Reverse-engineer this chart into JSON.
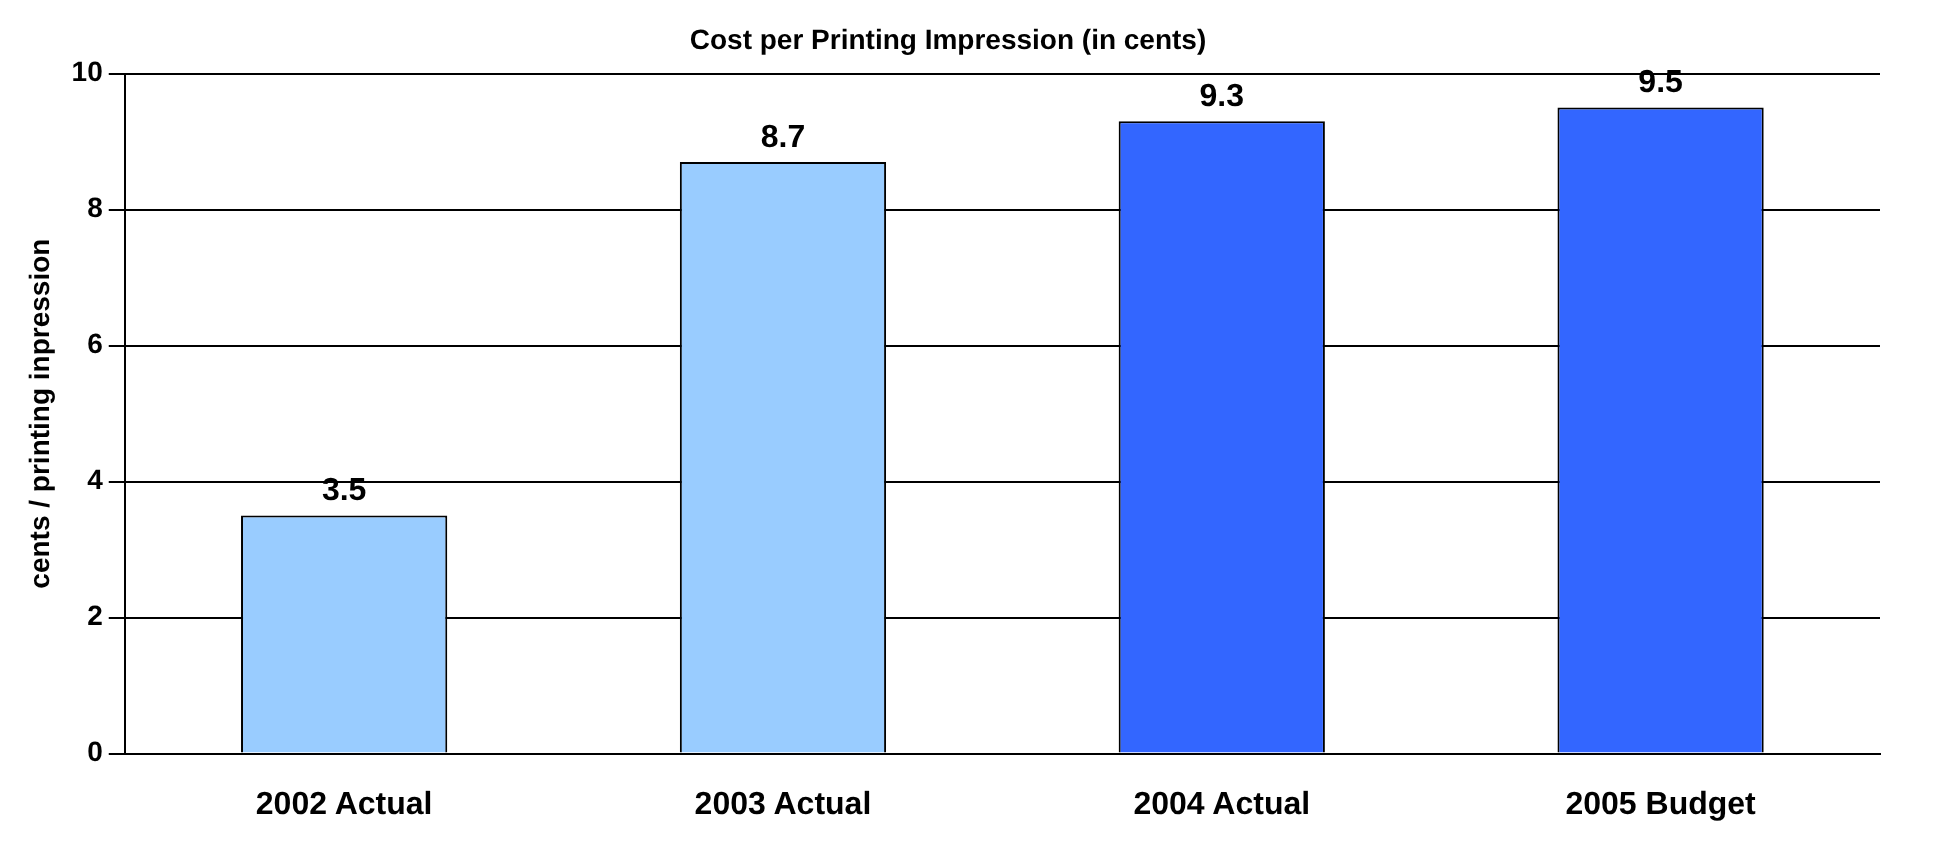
{
  "chart_data": {
    "type": "bar",
    "title": "Cost per Printing Impression (in cents)",
    "ylabel": "cents / printing inpression",
    "categories": [
      "2002 Actual",
      "2003 Actual",
      "2004 Actual",
      "2005 Budget"
    ],
    "values": [
      3.5,
      8.7,
      9.3,
      9.5
    ],
    "colors": [
      "#99ccff",
      "#99ccff",
      "#3366ff",
      "#3366ff"
    ],
    "ylim": [
      0,
      10
    ],
    "yticks": [
      0,
      2,
      4,
      6,
      8,
      10
    ],
    "grid": "y",
    "data_labels": true
  }
}
